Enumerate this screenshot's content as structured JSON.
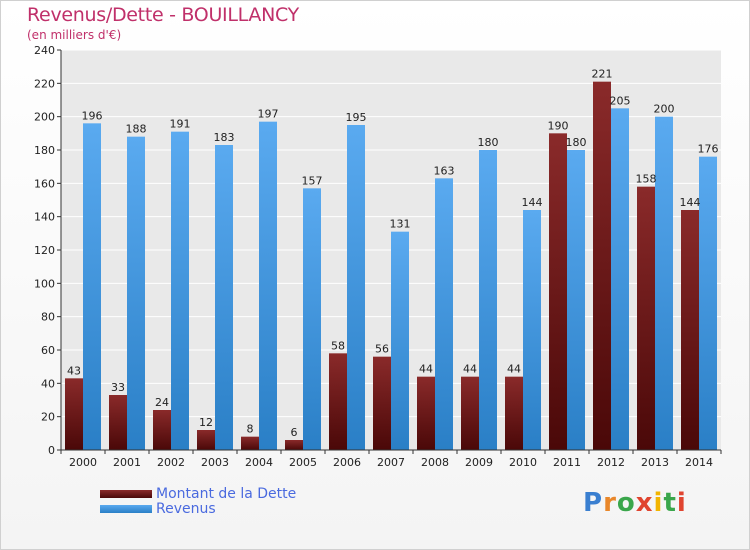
{
  "title": "Revenus/Dette - BOUILLANCY",
  "subtitle": "(en milliers d'€)",
  "logo": {
    "text": "Proxiti",
    "letter_colors": [
      "#3a7fd0",
      "#e9872a",
      "#3aa64b",
      "#e0442f",
      "#f2b400",
      "#3aa64b",
      "#e0442f"
    ]
  },
  "legend": [
    {
      "label": "Montant de la Dette",
      "color": "#6b1515"
    },
    {
      "label": "Revenus",
      "color": "#3b93dc"
    }
  ],
  "chart_data": {
    "type": "bar",
    "categories": [
      "2000",
      "2001",
      "2002",
      "2003",
      "2004",
      "2005",
      "2006",
      "2007",
      "2008",
      "2009",
      "2010",
      "2011",
      "2012",
      "2013",
      "2014"
    ],
    "series": [
      {
        "name": "Montant de la Dette",
        "color": "#6b1515",
        "values": [
          43,
          33,
          24,
          12,
          8,
          6,
          58,
          56,
          44,
          44,
          44,
          190,
          221,
          158,
          144
        ]
      },
      {
        "name": "Revenus",
        "color": "#3b93dc",
        "values": [
          196,
          188,
          191,
          183,
          197,
          157,
          195,
          131,
          163,
          180,
          144,
          180,
          205,
          200,
          176
        ]
      }
    ],
    "ylim": [
      0,
      240
    ],
    "yticks": [
      0,
      20,
      40,
      60,
      80,
      100,
      120,
      140,
      160,
      180,
      200,
      220,
      240
    ],
    "grid": true,
    "legend_position": "bottom-left"
  }
}
